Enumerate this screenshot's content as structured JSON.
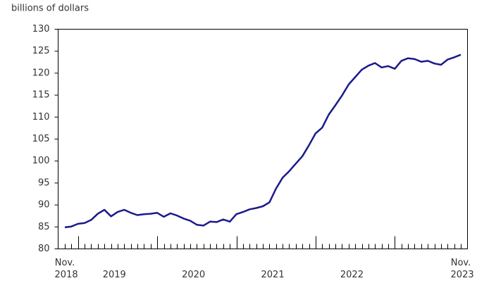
{
  "chart_data": {
    "type": "line",
    "y_label": "billions of dollars",
    "categories": [
      "Nov. 2018",
      null,
      null,
      null,
      null,
      null,
      null,
      "2019",
      null,
      null,
      null,
      null,
      null,
      null,
      null,
      null,
      null,
      null,
      null,
      "2020",
      null,
      null,
      null,
      null,
      null,
      null,
      null,
      null,
      null,
      null,
      null,
      "2021",
      null,
      null,
      null,
      null,
      null,
      null,
      null,
      null,
      null,
      null,
      null,
      "2022",
      null,
      null,
      null,
      null,
      null,
      null,
      null,
      null,
      null,
      null,
      null,
      null,
      null,
      null,
      null,
      null,
      "Nov. 2023"
    ],
    "series": [
      {
        "color": "#1a1a8c",
        "values": [
          84.9,
          85.1,
          85.7,
          85.9,
          86.6,
          88.0,
          88.9,
          87.4,
          88.4,
          88.9,
          88.2,
          87.7,
          87.9,
          88.0,
          88.2,
          87.3,
          88.1,
          87.6,
          86.9,
          86.4,
          85.5,
          85.3,
          86.2,
          86.1,
          86.7,
          86.2,
          87.9,
          88.4,
          89.0,
          89.3,
          89.7,
          90.6,
          93.7,
          96.2,
          97.7,
          99.4,
          101.1,
          103.6,
          106.3,
          107.6,
          110.6,
          112.7,
          114.9,
          117.4,
          119.1,
          120.8,
          121.7,
          122.3,
          121.3,
          121.6,
          121.0,
          122.8,
          123.4,
          123.2,
          122.6,
          122.8,
          122.2,
          121.9,
          123.1,
          123.6,
          124.2
        ]
      }
    ],
    "ylim": [
      80,
      130
    ],
    "yticks": [
      80,
      85,
      90,
      95,
      100,
      105,
      110,
      115,
      120,
      125,
      130
    ],
    "grid": false
  }
}
